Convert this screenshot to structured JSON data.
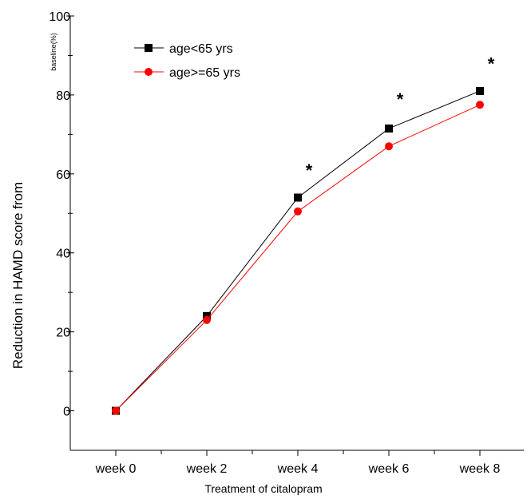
{
  "chart_data": {
    "type": "line",
    "title": "",
    "xlabel": "Treatment of citalopram",
    "ylabel": "Reduction in HAMD score from",
    "ylabel_suffix": "baseline(%)",
    "categories": [
      "week 0",
      "week 2",
      "week 4",
      "week 6",
      "week 8"
    ],
    "yticks": [
      "0",
      "20",
      "40",
      "60",
      "80",
      "100"
    ],
    "ylim": [
      -10,
      100
    ],
    "grid": false,
    "legend_position": "top-left",
    "series": [
      {
        "name": "age<65 yrs",
        "values": [
          0,
          24,
          54,
          71.5,
          81
        ],
        "color": "#000000",
        "marker": "square"
      },
      {
        "name": "age>=65 yrs",
        "values": [
          0,
          23,
          50.5,
          67,
          77.5
        ],
        "color": "#ff0000",
        "marker": "circle"
      }
    ],
    "annotations": [
      {
        "text": "*",
        "category": "week 4",
        "y": 61
      },
      {
        "text": "*",
        "category": "week 6",
        "y": 79
      },
      {
        "text": "*",
        "category": "week 8",
        "y": 88
      }
    ]
  }
}
